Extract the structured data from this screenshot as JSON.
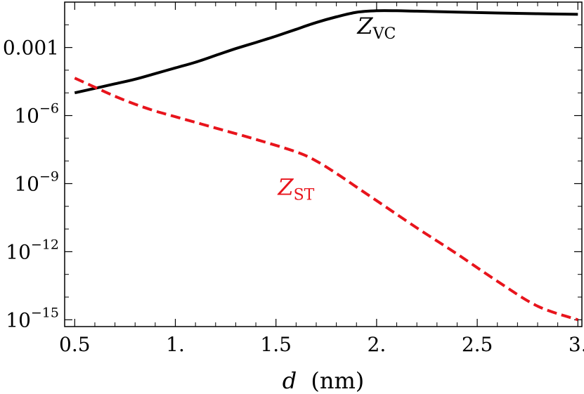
{
  "chart_data": {
    "type": "line",
    "xlabel": {
      "var": "d",
      "unit": "(nm)"
    },
    "ylabel": "",
    "title": "",
    "y_scale": "log",
    "xlim": [
      0.45,
      3.02
    ],
    "ylim_log10": [
      -15.3,
      -1.0
    ],
    "x_ticks": [
      {
        "value": 0.5,
        "label": "0.5"
      },
      {
        "value": 1.0,
        "label": "1."
      },
      {
        "value": 1.5,
        "label": "1.5"
      },
      {
        "value": 2.0,
        "label": "2."
      },
      {
        "value": 2.5,
        "label": "2.5"
      },
      {
        "value": 3.0,
        "label": "3."
      }
    ],
    "y_ticks": [
      {
        "exp": -3,
        "base": "0.001",
        "sup": ""
      },
      {
        "exp": -6,
        "base": "10",
        "sup": "−6"
      },
      {
        "exp": -9,
        "base": "10",
        "sup": "−9"
      },
      {
        "exp": -12,
        "base": "10",
        "sup": "−12"
      },
      {
        "exp": -15,
        "base": "10",
        "sup": "−15"
      }
    ],
    "series": [
      {
        "label_main": "Z",
        "label_sub": "VC",
        "color": "#000000",
        "dash": "solid",
        "x": [
          0.5,
          0.6,
          0.7,
          0.8,
          0.9,
          1.0,
          1.1,
          1.2,
          1.3,
          1.4,
          1.5,
          1.6,
          1.7,
          1.8,
          1.9,
          2.0,
          2.1,
          2.2,
          2.4,
          2.6,
          2.8,
          3.0
        ],
        "log10_y": [
          -5.0,
          -4.8,
          -4.6,
          -4.4,
          -4.15,
          -3.9,
          -3.65,
          -3.35,
          -3.05,
          -2.78,
          -2.5,
          -2.2,
          -1.9,
          -1.65,
          -1.45,
          -1.38,
          -1.38,
          -1.4,
          -1.44,
          -1.48,
          -1.51,
          -1.54
        ]
      },
      {
        "label_main": "Z",
        "label_sub": "ST",
        "color": "#e8141c",
        "dash": "dashed",
        "x": [
          0.5,
          0.6,
          0.7,
          0.8,
          0.9,
          1.0,
          1.2,
          1.4,
          1.6,
          1.7,
          1.8,
          1.9,
          2.0,
          2.2,
          2.4,
          2.6,
          2.8,
          3.0
        ],
        "log10_y": [
          -4.35,
          -4.75,
          -5.15,
          -5.5,
          -5.8,
          -6.05,
          -6.55,
          -7.05,
          -7.6,
          -8.0,
          -8.55,
          -9.15,
          -9.75,
          -10.95,
          -12.1,
          -13.3,
          -14.4,
          -15.0
        ]
      }
    ],
    "annotations": [
      {
        "series": 0,
        "x": 2.0,
        "log10_y": -2.4
      },
      {
        "series": 1,
        "x": 1.6,
        "log10_y": -9.5
      }
    ],
    "grid": false,
    "legend": "none"
  }
}
